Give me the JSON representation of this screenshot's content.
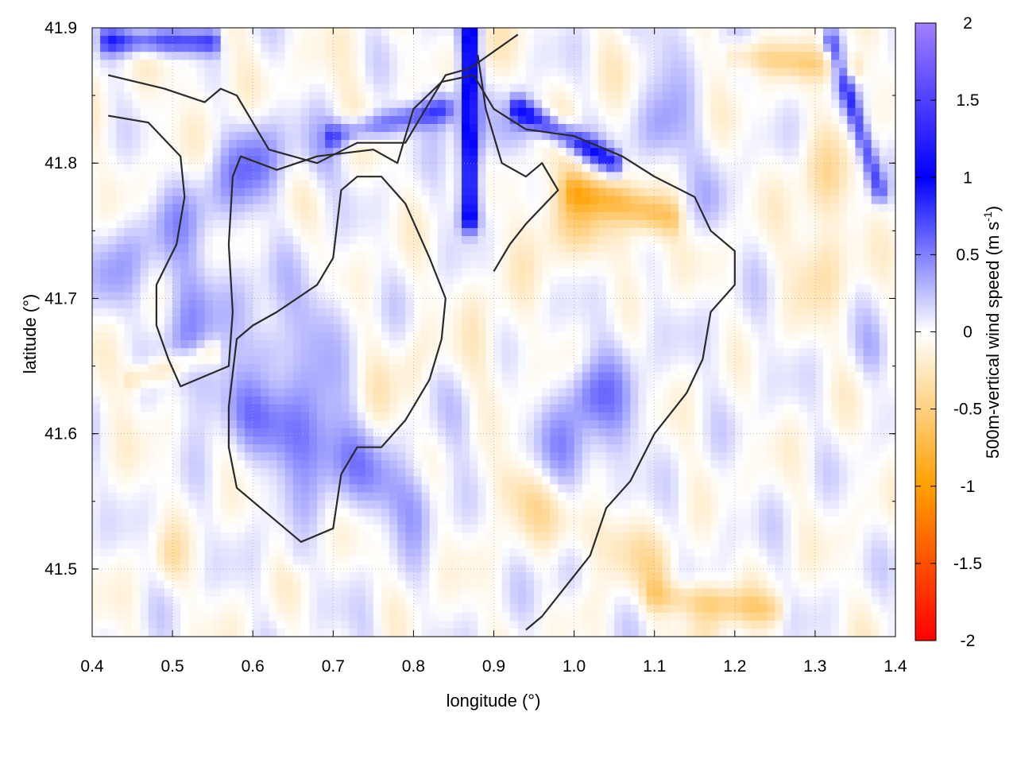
{
  "chart_data": {
    "type": "heatmap",
    "title": "",
    "xlabel": "longitude (°)",
    "ylabel": "latitude (°)",
    "colorbar_label": "500m-vertical wind speed (m s-1)",
    "colorbar_label_parts": {
      "main": "500m-vertical wind speed (m s",
      "sup": "-1",
      "tail": ")"
    },
    "xlim": [
      0.4,
      1.4
    ],
    "ylim": [
      41.45,
      41.9
    ],
    "clim": [
      -2,
      2
    ],
    "x_ticks": [
      0.4,
      0.5,
      0.6,
      0.7,
      0.8,
      0.9,
      1.0,
      1.1,
      1.2,
      1.3,
      1.4
    ],
    "x_tick_labels": [
      "0.4",
      "0.5",
      "0.6",
      "0.7",
      "0.8",
      "0.9",
      "1.0",
      "1.1",
      "1.2",
      "1.3",
      "1.4"
    ],
    "y_ticks": [
      41.5,
      41.6,
      41.7,
      41.8,
      41.9
    ],
    "y_tick_labels": [
      "41.5",
      "41.6",
      "41.7",
      "41.8",
      "41.9"
    ],
    "c_ticks": [
      2,
      1.5,
      1,
      0.5,
      0,
      -0.5,
      -1,
      -1.5,
      -2
    ],
    "c_tick_labels": [
      "2",
      "1.5",
      "1",
      "0.5",
      "0",
      "-0.5",
      "-1",
      "-1.5",
      "-2"
    ],
    "grid": true,
    "colormap": {
      "positive_stops": [
        "#ffffff",
        "#8080ff",
        "#0000ff",
        "#a080ff"
      ],
      "zero": "#ffffff",
      "negative_stops": [
        "#ffffff",
        "#ffd080",
        "#ffa000",
        "#ff0000"
      ]
    },
    "contour_color": "#2a2a2a",
    "contours": [
      [
        [
          0.42,
          41.865
        ],
        [
          0.49,
          41.855
        ],
        [
          0.54,
          41.845
        ],
        [
          0.56,
          41.855
        ],
        [
          0.58,
          41.85
        ],
        [
          0.62,
          41.81
        ],
        [
          0.68,
          41.8
        ],
        [
          0.73,
          41.815
        ],
        [
          0.79,
          41.815
        ],
        [
          0.84,
          41.865
        ],
        [
          0.87,
          41.87
        ],
        [
          0.93,
          41.895
        ]
      ],
      [
        [
          0.42,
          41.835
        ],
        [
          0.47,
          41.83
        ],
        [
          0.51,
          41.805
        ],
        [
          0.515,
          41.775
        ],
        [
          0.505,
          41.74
        ],
        [
          0.48,
          41.71
        ],
        [
          0.48,
          41.68
        ],
        [
          0.495,
          41.655
        ],
        [
          0.51,
          41.635
        ],
        [
          0.53,
          41.64
        ],
        [
          0.55,
          41.645
        ],
        [
          0.57,
          41.65
        ],
        [
          0.575,
          41.69
        ],
        [
          0.57,
          41.74
        ],
        [
          0.575,
          41.79
        ],
        [
          0.585,
          41.805
        ],
        [
          0.63,
          41.795
        ],
        [
          0.68,
          41.805
        ],
        [
          0.75,
          41.81
        ],
        [
          0.78,
          41.8
        ],
        [
          0.8,
          41.84
        ],
        [
          0.835,
          41.86
        ],
        [
          0.875,
          41.865
        ],
        [
          0.9,
          41.84
        ],
        [
          0.94,
          41.825
        ],
        [
          1.0,
          41.82
        ],
        [
          1.06,
          41.805
        ],
        [
          1.1,
          41.79
        ],
        [
          1.15,
          41.775
        ],
        [
          1.17,
          41.75
        ],
        [
          1.2,
          41.735
        ],
        [
          1.2,
          41.71
        ],
        [
          1.17,
          41.69
        ],
        [
          1.16,
          41.655
        ],
        [
          1.14,
          41.63
        ],
        [
          1.1,
          41.6
        ],
        [
          1.07,
          41.565
        ],
        [
          1.04,
          41.545
        ],
        [
          1.02,
          41.51
        ],
        [
          1.0,
          41.495
        ],
        [
          0.98,
          41.48
        ],
        [
          0.96,
          41.465
        ],
        [
          0.94,
          41.455
        ]
      ],
      [
        [
          0.71,
          41.57
        ],
        [
          0.73,
          41.59
        ],
        [
          0.76,
          41.59
        ],
        [
          0.79,
          41.61
        ],
        [
          0.82,
          41.64
        ],
        [
          0.835,
          41.67
        ],
        [
          0.84,
          41.7
        ],
        [
          0.82,
          41.73
        ],
        [
          0.79,
          41.77
        ],
        [
          0.76,
          41.79
        ],
        [
          0.73,
          41.79
        ],
        [
          0.71,
          41.78
        ],
        [
          0.7,
          41.73
        ],
        [
          0.68,
          41.71
        ],
        [
          0.63,
          41.69
        ],
        [
          0.6,
          41.68
        ],
        [
          0.58,
          41.67
        ],
        [
          0.57,
          41.62
        ],
        [
          0.57,
          41.59
        ],
        [
          0.58,
          41.56
        ],
        [
          0.62,
          41.54
        ],
        [
          0.66,
          41.52
        ],
        [
          0.7,
          41.53
        ],
        [
          0.71,
          41.57
        ]
      ],
      [
        [
          0.88,
          41.88
        ],
        [
          0.89,
          41.84
        ],
        [
          0.91,
          41.8
        ],
        [
          0.94,
          41.79
        ],
        [
          0.96,
          41.8
        ],
        [
          0.98,
          41.78
        ],
        [
          0.94,
          41.755
        ],
        [
          0.92,
          41.74
        ],
        [
          0.9,
          41.72
        ]
      ]
    ]
  }
}
